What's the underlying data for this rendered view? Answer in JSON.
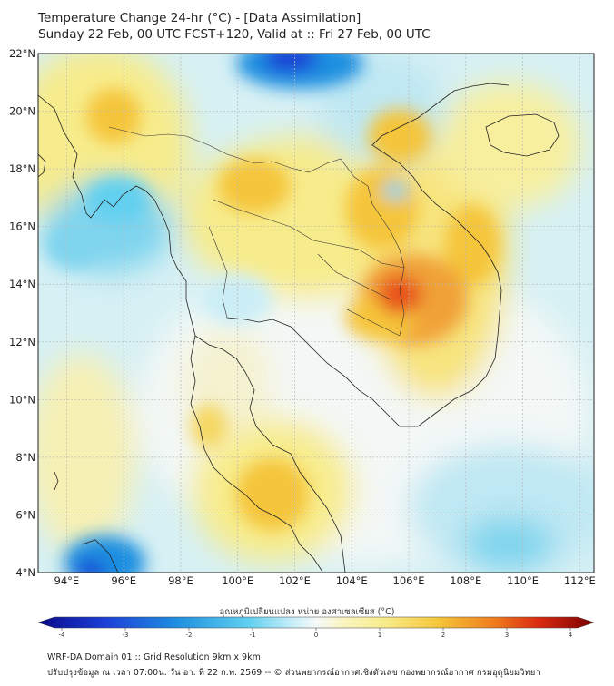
{
  "header": {
    "title": "Temperature Change 24-hr (°C) - [Data Assimilation]",
    "subtitle": "Sunday 22 Feb, 00 UTC FCST+120, Valid at :: Fri 27 Feb, 00 UTC"
  },
  "map": {
    "lat_labels": [
      "22°N",
      "20°N",
      "18°N",
      "16°N",
      "14°N",
      "12°N",
      "10°N",
      "8°N",
      "6°N",
      "4°N"
    ],
    "lon_labels": [
      "94°E",
      "96°E",
      "98°E",
      "100°E",
      "102°E",
      "104°E",
      "106°E",
      "108°E",
      "110°E",
      "112°E"
    ],
    "lat_range": [
      4,
      22
    ],
    "lon_range": [
      93,
      112.5
    ]
  },
  "colorbar": {
    "label": "อุณหภูมิเปลี่ยนแปลง หน่วย องศาเซลเซียส (°C)",
    "tick_labels": [
      "-4",
      "-3",
      "-2",
      "-1",
      "0",
      "1",
      "2",
      "3",
      "4"
    ],
    "range": [
      -4,
      4
    ]
  },
  "footer": {
    "line1": "WRF-DA Domain 01 :: Grid Resolution 9km x 9km",
    "line2": "ปรับปรุงข้อมูล ณ เวลา 07:00น. วัน อา. ที่ 22 ก.พ. 2569 -- © ส่วนพยากรณ์อากาศเชิงตัวเลข กองพยากรณ์อากาศ กรมอุตุนิยมวิทยา"
  },
  "colors": {
    "cold_deep": "#0a0a8a",
    "cold": "#1f8fe0",
    "cool": "#7fd4ee",
    "neutral": "#f4f8fa",
    "warm": "#f7ec8c",
    "warmer": "#f5c53a",
    "hot": "#e8541a",
    "hot_deep": "#7a0000"
  }
}
